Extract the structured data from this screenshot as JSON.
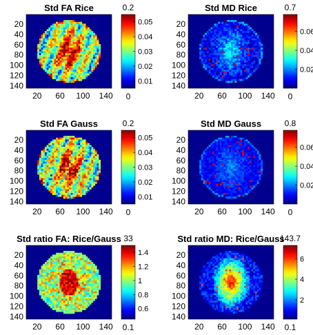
{
  "chart_data": [
    {
      "type": "heatmap",
      "title": "Std FA Rice",
      "x_ticks": [
        20,
        60,
        100,
        140
      ],
      "y_ticks": [
        20,
        40,
        60,
        80,
        100,
        120,
        140
      ],
      "xlim": [
        1,
        150
      ],
      "ylim": [
        1,
        145
      ],
      "colorbar": {
        "ticks": [
          "0.01",
          "0.02",
          "0.03",
          "0.04",
          "0.05"
        ],
        "tick_values": [
          0.01,
          0.02,
          0.03,
          0.04,
          0.05
        ],
        "range": [
          0.005,
          0.055
        ],
        "top_label": "0.2",
        "bottom_label": "0"
      },
      "map_pattern": "fa",
      "center_intensity": 0.85,
      "noise": 0.35,
      "background_level": 0.0
    },
    {
      "type": "heatmap",
      "title": "Std MD Rice",
      "x_ticks": [
        20,
        60,
        100,
        140
      ],
      "y_ticks": [
        20,
        40,
        60,
        80,
        100,
        120,
        140
      ],
      "xlim": [
        1,
        150
      ],
      "ylim": [
        1,
        145
      ],
      "colorbar": {
        "ticks": [
          "0.02",
          "0.04",
          "0.06"
        ],
        "tick_values": [
          0.02,
          0.04,
          0.06
        ],
        "range": [
          0.0,
          0.078
        ],
        "top_label": "0.7",
        "bottom_label": "0"
      },
      "map_pattern": "md",
      "center_intensity": 0.35,
      "noise": 0.25,
      "background_level": 0.0
    },
    {
      "type": "heatmap",
      "title": "Std FA Gauss",
      "x_ticks": [
        20,
        60,
        100,
        140
      ],
      "y_ticks": [
        20,
        40,
        60,
        80,
        100,
        120,
        140
      ],
      "xlim": [
        1,
        150
      ],
      "ylim": [
        1,
        145
      ],
      "colorbar": {
        "ticks": [
          "0.01",
          "0.02",
          "0.03",
          "0.04",
          "0.05"
        ],
        "tick_values": [
          0.01,
          0.02,
          0.03,
          0.04,
          0.05
        ],
        "range": [
          0.005,
          0.055
        ],
        "top_label": "0.2",
        "bottom_label": "0"
      },
      "map_pattern": "fa",
      "center_intensity": 0.82,
      "noise": 0.4,
      "background_level": 0.0
    },
    {
      "type": "heatmap",
      "title": "Std MD Gauss",
      "x_ticks": [
        20,
        60,
        100,
        140
      ],
      "y_ticks": [
        20,
        40,
        60,
        80,
        100,
        120,
        140
      ],
      "xlim": [
        1,
        150
      ],
      "ylim": [
        1,
        145
      ],
      "colorbar": {
        "ticks": [
          "0.02",
          "0.04",
          "0.06"
        ],
        "tick_values": [
          0.02,
          0.04,
          0.06
        ],
        "range": [
          0.0,
          0.078
        ],
        "top_label": "0.8",
        "bottom_label": "0"
      },
      "map_pattern": "md",
      "center_intensity": 0.2,
      "noise": 0.15,
      "background_level": 0.0
    },
    {
      "type": "heatmap",
      "title": "Std ratio FA: Rice/Gauss",
      "x_ticks": [
        20,
        60,
        100,
        140
      ],
      "y_ticks": [
        20,
        40,
        60,
        80,
        100,
        120,
        140
      ],
      "xlim": [
        1,
        150
      ],
      "ylim": [
        1,
        145
      ],
      "colorbar": {
        "ticks": [
          "0.6",
          "0.8",
          "1",
          "1.2",
          "1.4"
        ],
        "tick_values": [
          0.6,
          0.8,
          1.0,
          1.2,
          1.4
        ],
        "range": [
          0.45,
          1.5
        ],
        "top_label": "33",
        "bottom_label": "0.1"
      },
      "map_pattern": "ratio_fa",
      "center_intensity": 0.9,
      "noise": 0.3,
      "background_level": 0.0
    },
    {
      "type": "heatmap",
      "title": "Std ratio MD: Rice/Gauss",
      "x_ticks": [
        20,
        60,
        100,
        140
      ],
      "y_ticks": [
        20,
        40,
        60,
        80,
        100,
        120,
        140
      ],
      "xlim": [
        1,
        150
      ],
      "ylim": [
        1,
        145
      ],
      "colorbar": {
        "ticks": [
          "2",
          "4",
          "6"
        ],
        "tick_values": [
          2,
          4,
          6
        ],
        "range": [
          0.1,
          7.3
        ],
        "top_label": "143.7",
        "bottom_label": "0.1"
      },
      "map_pattern": "ratio_md",
      "center_intensity": 0.75,
      "noise": 0.2,
      "background_level": 0.0
    }
  ],
  "colors": {
    "colormap": "jet",
    "background": "#00008f",
    "axis": "#000000"
  }
}
